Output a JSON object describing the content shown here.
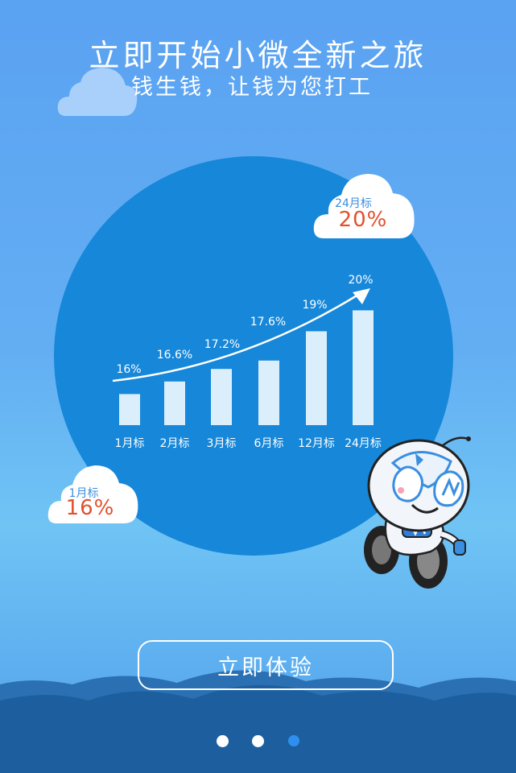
{
  "header": {
    "title": "立即开始小微全新之旅",
    "subtitle": "钱生钱，让钱为您打工"
  },
  "clouds": {
    "top_right": {
      "caption": "24月标",
      "value": "20%"
    },
    "bottom_left": {
      "caption": "1月标",
      "value": "16%"
    }
  },
  "chart_data": {
    "type": "bar",
    "categories": [
      "1月标",
      "2月标",
      "3月标",
      "6月标",
      "12月标",
      "24月标"
    ],
    "values": [
      16,
      16.6,
      17.2,
      17.6,
      19,
      20
    ],
    "value_labels": [
      "16%",
      "16.6%",
      "17.2%",
      "17.6%",
      "19%",
      "20%"
    ],
    "title": "",
    "xlabel": "",
    "ylabel": "",
    "trend_arrow": true,
    "colors": {
      "bar": "#dbeefb",
      "label": "#ffffff",
      "arrow": "#ffffff"
    }
  },
  "cta": {
    "label": "立即体验"
  },
  "pagination": {
    "count": 3,
    "active_index": 2
  },
  "colors": {
    "circle": "#1687d9",
    "hill_dark": "#1d5f9e",
    "hill_mid": "#2a70b3",
    "cloud": "#ffffff",
    "accent_orange": "#e2502c",
    "accent_blue": "#3a8ee0"
  }
}
